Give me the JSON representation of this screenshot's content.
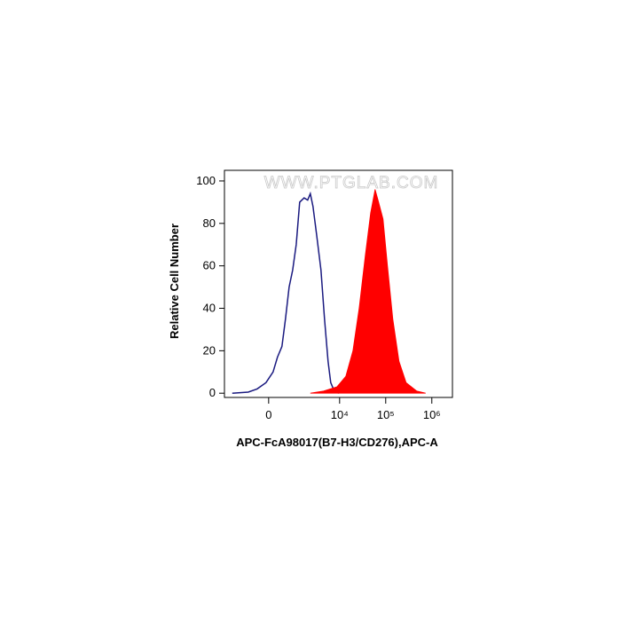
{
  "chart_data": {
    "type": "histogram-overlay",
    "xscale": "biexponential",
    "xlabel": "APC-FcA98017(B7-H3/CD276),APC-A",
    "ylabel": "Relative Cell Number",
    "watermark": "WWW.PTGLAB.COM",
    "xlim": [
      -2600,
      2800000
    ],
    "ylim": [
      -2,
      105
    ],
    "xticks": [
      0,
      {
        "value": 10000,
        "label": "10⁴"
      },
      {
        "value": 100000,
        "label": "10⁵"
      },
      {
        "value": 1000000,
        "label": "10⁶"
      }
    ],
    "yticks": [
      0,
      20,
      40,
      60,
      80,
      100
    ],
    "series": [
      {
        "style": "line",
        "color": "#1a1a80",
        "x": [
          -1737,
          -699,
          -352,
          -77,
          129,
          265,
          413,
          547,
          699,
          873,
          1071,
          1303,
          1650,
          1992,
          2281,
          2617,
          3138,
          3926,
          4696,
          5611,
          6415,
          7660,
          9565
        ],
        "values": [
          0,
          0.5,
          2,
          5,
          10,
          17,
          22,
          35,
          50,
          58,
          70,
          90,
          92,
          91,
          94,
          88,
          75,
          58,
          35,
          15,
          5,
          1,
          0
        ]
      },
      {
        "style": "fill",
        "color": "#ff0000",
        "x": [
          2281,
          4493,
          8754,
          13647,
          19437,
          26518,
          36130,
          47189,
          58826,
          70291,
          87661,
          109373,
          142666,
          194544,
          277109,
          471827,
          734751
        ],
        "values": [
          0,
          1,
          3,
          8,
          20,
          40,
          65,
          85,
          96,
          90,
          82,
          60,
          35,
          15,
          5,
          1,
          0
        ]
      }
    ]
  }
}
